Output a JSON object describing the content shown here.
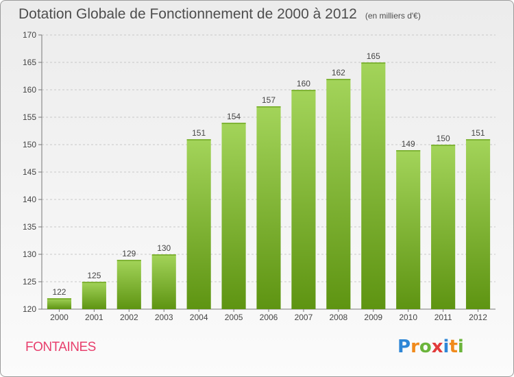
{
  "header": {
    "title": "Dotation Globale de Fonctionnement de 2000 à 2012",
    "unit": "(en milliers d'€)"
  },
  "commune": "FONTAINES",
  "logo": {
    "text": "Proxiti",
    "letters": [
      {
        "ch": "P",
        "color": "#2e86d6"
      },
      {
        "ch": "r",
        "color": "#f08a1c"
      },
      {
        "ch": "o",
        "color": "#6bb43b"
      },
      {
        "ch": "x",
        "color": "#e23b3b"
      },
      {
        "ch": "i",
        "color": "#2e86d6"
      },
      {
        "ch": "t",
        "color": "#f08a1c"
      },
      {
        "ch": "i",
        "color": "#6bb43b"
      }
    ]
  },
  "chart_data": {
    "type": "bar",
    "categories": [
      "2000",
      "2001",
      "2002",
      "2003",
      "2004",
      "2005",
      "2006",
      "2007",
      "2008",
      "2009",
      "2010",
      "2011",
      "2012"
    ],
    "values": [
      122,
      125,
      129,
      130,
      151,
      154,
      157,
      160,
      162,
      165,
      149,
      150,
      151
    ],
    "title": "Dotation Globale de Fonctionnement de 2000 à 2012",
    "ylim": [
      120,
      170
    ],
    "yticks": [
      120,
      125,
      130,
      135,
      140,
      145,
      150,
      155,
      160,
      165,
      170
    ],
    "grid": true,
    "bar_color_light": "#a3d45a",
    "bar_color_dark": "#5e9412"
  }
}
